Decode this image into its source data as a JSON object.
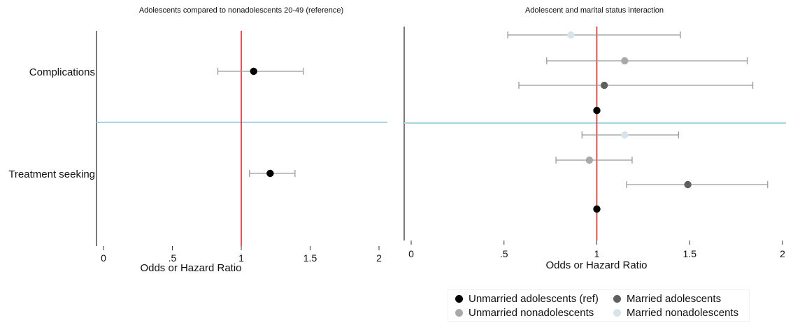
{
  "colors": {
    "reference_line": "#d62a2a",
    "separator_line": "#a9d5e6",
    "ci_line": "#9a9a9a",
    "axis": "#333333"
  },
  "chart_data": [
    {
      "type": "scatter",
      "subtype": "forest-plot",
      "title": "Adolescents compared to nonadolescents 20-49 (reference)",
      "xlabel": "Odds or Hazard Ratio",
      "ylabel": "",
      "xlim": [
        0,
        2
      ],
      "xticks": [
        "0",
        ".5",
        "1",
        "1.5",
        "2"
      ],
      "xtick_values": [
        0,
        0.5,
        1,
        1.5,
        2
      ],
      "reference_x": 1,
      "groups": [
        {
          "label": "Complications",
          "points": [
            {
              "estimate": 1.09,
              "ci": [
                0.83,
                1.45
              ],
              "color": "#000000"
            }
          ]
        },
        {
          "label": "Treatment seeking",
          "points": [
            {
              "estimate": 1.21,
              "ci": [
                1.06,
                1.39
              ],
              "color": "#000000"
            }
          ]
        }
      ]
    },
    {
      "type": "scatter",
      "subtype": "forest-plot",
      "title": "Adolescent and marital status interaction",
      "xlabel": "Odds or Hazard Ratio",
      "ylabel": "",
      "xlim": [
        0,
        2
      ],
      "xticks": [
        "0",
        ".5",
        "1",
        "1.5",
        "2"
      ],
      "xtick_values": [
        0,
        0.5,
        1,
        1.5,
        2
      ],
      "reference_x": 1,
      "groups": [
        {
          "label": "",
          "points": [
            {
              "series": "Married nonadolescents",
              "estimate": 0.86,
              "ci": [
                0.52,
                1.45
              ],
              "color": "#d7e4ea"
            },
            {
              "series": "Unmarried nonadolescents",
              "estimate": 1.15,
              "ci": [
                0.73,
                1.81
              ],
              "color": "#a9a9a9"
            },
            {
              "series": "Married adolescents",
              "estimate": 1.04,
              "ci": [
                0.58,
                1.84
              ],
              "color": "#5f5f5f"
            },
            {
              "series": "Unmarried adolescents (ref)",
              "estimate": 1.0,
              "ci": null,
              "color": "#000000"
            }
          ]
        },
        {
          "label": "",
          "points": [
            {
              "series": "Married nonadolescents",
              "estimate": 1.15,
              "ci": [
                0.92,
                1.44
              ],
              "color": "#d7e4ea"
            },
            {
              "series": "Unmarried nonadolescents",
              "estimate": 0.96,
              "ci": [
                0.78,
                1.19
              ],
              "color": "#a9a9a9"
            },
            {
              "series": "Married adolescents",
              "estimate": 1.49,
              "ci": [
                1.16,
                1.92
              ],
              "color": "#5f5f5f"
            },
            {
              "series": "Unmarried adolescents (ref)",
              "estimate": 1.0,
              "ci": null,
              "color": "#000000"
            }
          ]
        }
      ],
      "legend": {
        "placement": "bottom-right",
        "entries": [
          {
            "label": "Unmarried adolescents (ref)",
            "color": "#000000"
          },
          {
            "label": "Married adolescents",
            "color": "#5f5f5f"
          },
          {
            "label": "Unmarried nonadolescents",
            "color": "#a9a9a9"
          },
          {
            "label": "Married nonadolescents",
            "color": "#d7e4ea"
          }
        ]
      }
    }
  ]
}
